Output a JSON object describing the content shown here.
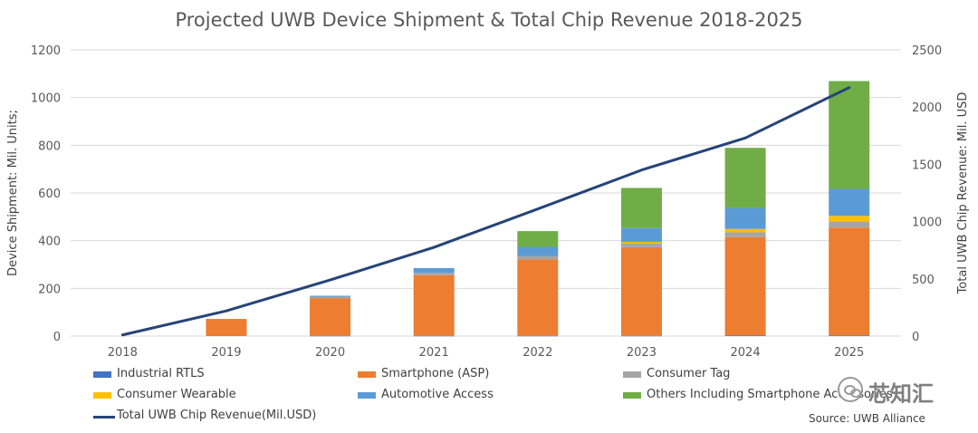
{
  "chart_data": {
    "type": "bar",
    "title": "Projected UWB Device Shipment & Total Chip Revenue 2018-2025",
    "ylabel": "Device Shipment: Mil. Units;",
    "y2label": "Total UWB Chip Revenue: Mil. USD",
    "ylim": [
      0,
      1200
    ],
    "y2lim": [
      0,
      2500
    ],
    "yticks": [
      0,
      200,
      400,
      600,
      800,
      1000,
      1200
    ],
    "y2ticks": [
      0,
      500,
      1000,
      1500,
      2000,
      2500
    ],
    "categories": [
      "2018",
      "2019",
      "2020",
      "2021",
      "2022",
      "2023",
      "2024",
      "2025"
    ],
    "stacked": true,
    "series": [
      {
        "name": "Industrial RTLS",
        "color": "#4472c4",
        "values": [
          0,
          0,
          1,
          1,
          1,
          1,
          2,
          3
        ]
      },
      {
        "name": "Smartphone (ASP)",
        "color": "#ed7d31",
        "values": [
          0,
          72,
          158,
          254,
          320,
          372,
          413,
          452
        ]
      },
      {
        "name": "Consumer Tag",
        "color": "#a5a5a5",
        "values": [
          0,
          0,
          6,
          10,
          15,
          16,
          20,
          25
        ]
      },
      {
        "name": "Consumer Wearable",
        "color": "#ffc000",
        "values": [
          0,
          0,
          0,
          0,
          0,
          6,
          14,
          24
        ]
      },
      {
        "name": "Automotive Access",
        "color": "#5b9bd5",
        "values": [
          0,
          0,
          4,
          20,
          38,
          58,
          88,
          113
        ]
      },
      {
        "name": "Others Including Smartphone Accessories",
        "color": "#70ad47",
        "values": [
          0,
          0,
          0,
          0,
          66,
          168,
          252,
          452
        ]
      }
    ],
    "line_series": {
      "name": "Total UWB Chip Revenue(Mil.USD)",
      "color": "#264478",
      "axis": "right",
      "values": [
        10,
        220,
        490,
        775,
        1110,
        1450,
        1730,
        2170
      ]
    },
    "grid": true,
    "legend_position": "bottom"
  },
  "legend": {
    "items": [
      "Industrial RTLS",
      "Smartphone (ASP)",
      "Consumer Tag",
      "Consumer Wearable",
      "Automotive Access",
      "Others Including Smartphone Accessories",
      "Total UWB Chip Revenue(Mil.USD)"
    ]
  },
  "source": "Source: UWB Alliance",
  "watermark": "芯知汇"
}
